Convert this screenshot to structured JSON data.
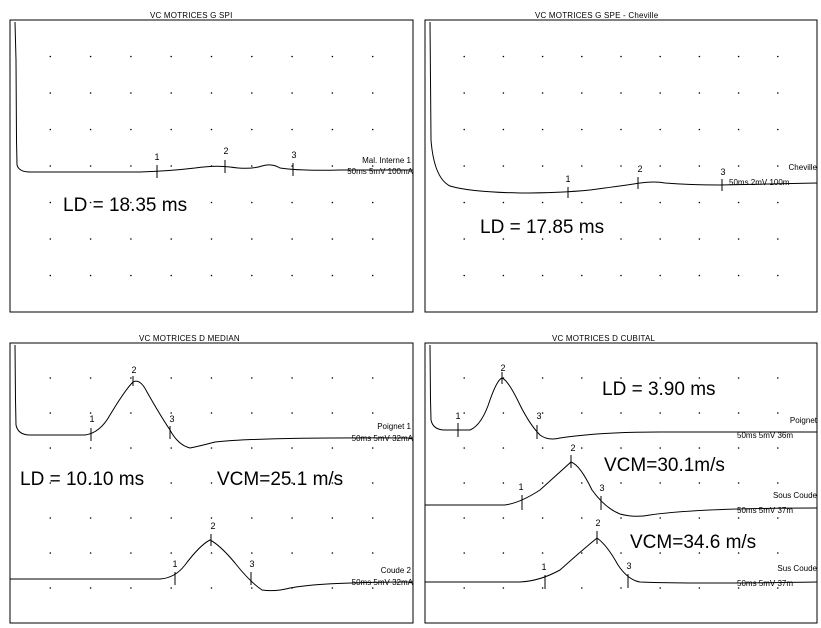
{
  "panels": [
    {
      "title": "VC MOTRICES G SPI",
      "traces": [
        {
          "labels": [
            "Mal. Interne 1",
            "50ms 5mV 100mA"
          ],
          "markers": [
            "1",
            "2",
            "3"
          ]
        }
      ],
      "measurements": [
        "LD = 18.35 ms"
      ]
    },
    {
      "title": "VC MOTRICES G SPE - Cheville",
      "traces": [
        {
          "labels": [
            "Cheville",
            "50ms 2mV 100m"
          ],
          "markers": [
            "1",
            "2",
            "3"
          ]
        }
      ],
      "measurements": [
        "LD = 17.85 ms"
      ]
    },
    {
      "title": "VC MOTRICES D MEDIAN",
      "traces": [
        {
          "labels": [
            "Poignet 1",
            "50ms 5mV 32mA"
          ],
          "markers": [
            "1",
            "2",
            "3"
          ]
        },
        {
          "labels": [
            "Coude 2",
            "50ms 5mV 32mA"
          ],
          "markers": [
            "1",
            "2",
            "3"
          ]
        }
      ],
      "measurements": [
        "LD = 10.10 ms",
        "VCM=25.1 m/s"
      ]
    },
    {
      "title": "VC MOTRICES D CUBITAL",
      "traces": [
        {
          "labels": [
            "Poignet",
            "50ms 5mV 36m"
          ],
          "markers": [
            "1",
            "2",
            "3"
          ]
        },
        {
          "labels": [
            "Sous Coude",
            "50ms 5mV 37m"
          ],
          "markers": [
            "1",
            "2",
            "3"
          ]
        },
        {
          "labels": [
            "Sus Coude",
            "50ms 5mV 37m"
          ],
          "markers": [
            "1",
            "2",
            "3"
          ]
        }
      ],
      "measurements": [
        "LD = 3.90 ms",
        "VCM=30.1m/s",
        "VCM=34.6 m/s"
      ]
    }
  ],
  "chart_data": [
    {
      "type": "line",
      "title": "VC MOTRICES G SPI",
      "traces": [
        "Mal. Interne 1"
      ],
      "annotations": [
        "LD = 18.35 ms"
      ]
    },
    {
      "type": "line",
      "title": "VC MOTRICES G SPE - Cheville",
      "traces": [
        "Cheville"
      ],
      "annotations": [
        "LD = 17.85 ms"
      ]
    },
    {
      "type": "line",
      "title": "VC MOTRICES D MEDIAN",
      "traces": [
        "Poignet 1",
        "Coude 2"
      ],
      "annotations": [
        "LD = 10.10 ms",
        "VCM=25.1 m/s"
      ]
    },
    {
      "type": "line",
      "title": "VC MOTRICES D CUBITAL",
      "traces": [
        "Poignet",
        "Sous Coude",
        "Sus Coude"
      ],
      "annotations": [
        "LD = 3.90 ms",
        "VCM=30.1m/s",
        "VCM=34.6 m/s"
      ]
    }
  ]
}
